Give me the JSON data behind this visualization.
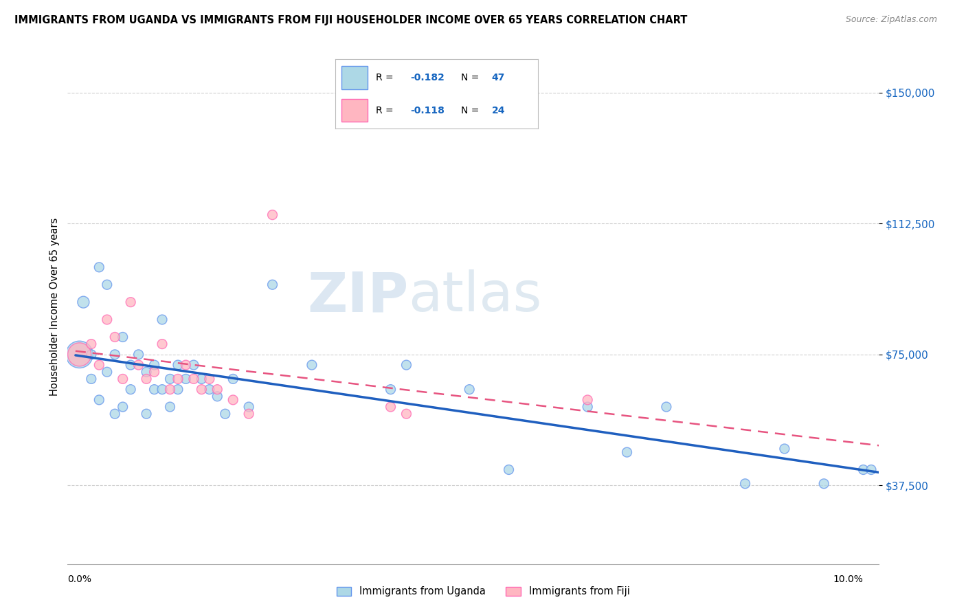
{
  "title": "IMMIGRANTS FROM UGANDA VS IMMIGRANTS FROM FIJI HOUSEHOLDER INCOME OVER 65 YEARS CORRELATION CHART",
  "source": "Source: ZipAtlas.com",
  "ylabel": "Householder Income Over 65 years",
  "watermark_zip": "ZIP",
  "watermark_atlas": "atlas",
  "ytick_labels": [
    "$37,500",
    "$75,000",
    "$112,500",
    "$150,000"
  ],
  "ytick_values": [
    37500,
    75000,
    112500,
    150000
  ],
  "ylim": [
    15000,
    162500
  ],
  "xlim": [
    -0.001,
    0.102
  ],
  "uganda_R": -0.182,
  "uganda_N": 47,
  "fiji_R": -0.118,
  "fiji_N": 24,
  "uganda_color": "#ADD8E6",
  "fiji_color": "#FFB6C1",
  "uganda_edge_color": "#6495ED",
  "fiji_edge_color": "#FF69B4",
  "uganda_line_color": "#1F5FBF",
  "fiji_line_color": "#E75480",
  "background_color": "#ffffff",
  "grid_color": "#d0d0d0",
  "uganda_x": [
    0.0005,
    0.001,
    0.002,
    0.002,
    0.003,
    0.003,
    0.004,
    0.004,
    0.005,
    0.005,
    0.006,
    0.006,
    0.007,
    0.007,
    0.008,
    0.009,
    0.009,
    0.01,
    0.01,
    0.011,
    0.011,
    0.012,
    0.012,
    0.013,
    0.013,
    0.014,
    0.015,
    0.016,
    0.017,
    0.018,
    0.019,
    0.02,
    0.022,
    0.025,
    0.03,
    0.04,
    0.042,
    0.05,
    0.055,
    0.065,
    0.07,
    0.075,
    0.085,
    0.09,
    0.095,
    0.1,
    0.101
  ],
  "uganda_y": [
    75000,
    90000,
    75000,
    68000,
    100000,
    62000,
    95000,
    70000,
    75000,
    58000,
    80000,
    60000,
    72000,
    65000,
    75000,
    70000,
    58000,
    72000,
    65000,
    85000,
    65000,
    68000,
    60000,
    72000,
    65000,
    68000,
    72000,
    68000,
    65000,
    63000,
    58000,
    68000,
    60000,
    95000,
    72000,
    65000,
    72000,
    65000,
    42000,
    60000,
    47000,
    60000,
    38000,
    48000,
    38000,
    42000,
    42000
  ],
  "uganda_sizes": [
    800,
    150,
    100,
    100,
    100,
    100,
    100,
    100,
    100,
    100,
    100,
    100,
    100,
    100,
    100,
    100,
    100,
    100,
    100,
    100,
    100,
    100,
    100,
    100,
    100,
    100,
    100,
    100,
    100,
    100,
    100,
    100,
    100,
    100,
    100,
    100,
    100,
    100,
    100,
    100,
    100,
    100,
    100,
    100,
    100,
    100,
    100
  ],
  "fiji_x": [
    0.0005,
    0.002,
    0.003,
    0.004,
    0.005,
    0.006,
    0.007,
    0.008,
    0.009,
    0.01,
    0.011,
    0.012,
    0.013,
    0.014,
    0.015,
    0.016,
    0.017,
    0.018,
    0.02,
    0.022,
    0.025,
    0.04,
    0.042,
    0.065
  ],
  "fiji_y": [
    75000,
    78000,
    72000,
    85000,
    80000,
    68000,
    90000,
    72000,
    68000,
    70000,
    78000,
    65000,
    68000,
    72000,
    68000,
    65000,
    68000,
    65000,
    62000,
    58000,
    115000,
    60000,
    58000,
    62000
  ],
  "fiji_sizes": [
    600,
    100,
    100,
    100,
    100,
    100,
    100,
    100,
    100,
    100,
    100,
    100,
    100,
    100,
    100,
    100,
    100,
    100,
    100,
    100,
    100,
    100,
    100,
    100
  ],
  "legend_uganda_label": "R = -0.182   N = 47",
  "legend_fiji_label": "R = -0.118   N = 24",
  "bottom_legend_uganda": "Immigrants from Uganda",
  "bottom_legend_fiji": "Immigrants from Fiji"
}
